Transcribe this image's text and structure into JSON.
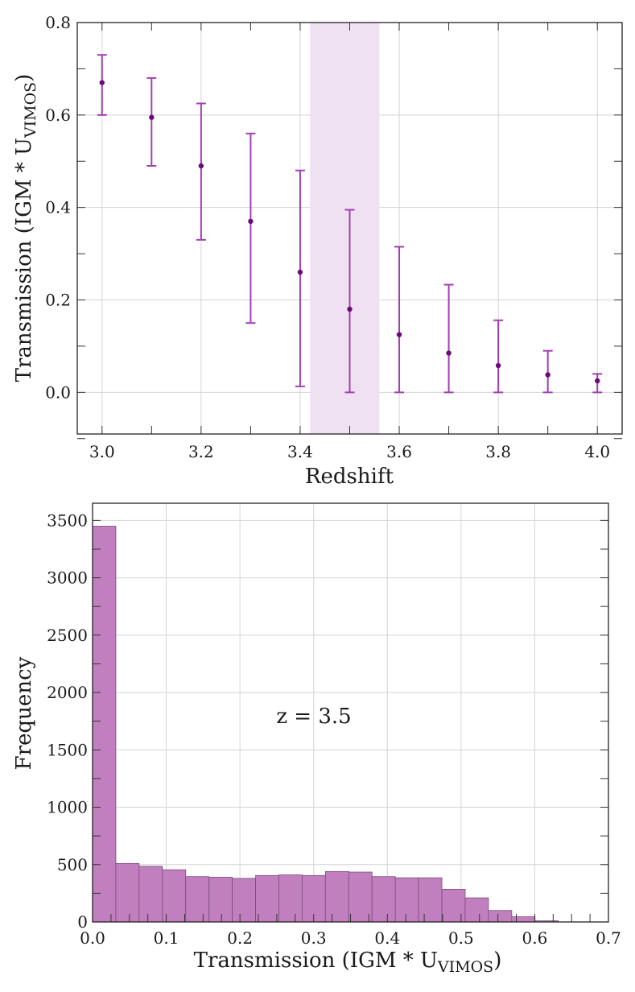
{
  "chart_data": [
    {
      "type": "scatter",
      "title": "",
      "xlabel": "Redshift",
      "ylabel": "Transmission (IGM * U",
      "ylabel_sub": "VIMOS",
      "ylabel_close": ")",
      "xlim": [
        2.95,
        4.05
      ],
      "ylim": [
        -0.09,
        0.8
      ],
      "xticks": [
        "3.0",
        "3.2",
        "3.4",
        "3.6",
        "3.8",
        "4.0"
      ],
      "yticks": [
        "0.0",
        "0.2",
        "0.4",
        "0.6",
        "0.8"
      ],
      "grid": true,
      "shaded_region": [
        3.42,
        3.56
      ],
      "colors": {
        "marker": "#6a0a78",
        "errorbar": "#a040b0",
        "shade": "#efe0f2"
      },
      "points": [
        {
          "x": 3.0,
          "y": 0.67,
          "low": 0.6,
          "high": 0.73
        },
        {
          "x": 3.1,
          "y": 0.595,
          "low": 0.49,
          "high": 0.68
        },
        {
          "x": 3.2,
          "y": 0.49,
          "low": 0.33,
          "high": 0.625
        },
        {
          "x": 3.3,
          "y": 0.37,
          "low": 0.15,
          "high": 0.56
        },
        {
          "x": 3.4,
          "y": 0.26,
          "low": 0.013,
          "high": 0.48
        },
        {
          "x": 3.5,
          "y": 0.18,
          "low": 0.0,
          "high": 0.395
        },
        {
          "x": 3.6,
          "y": 0.125,
          "low": 0.0,
          "high": 0.315
        },
        {
          "x": 3.7,
          "y": 0.085,
          "low": 0.0,
          "high": 0.233
        },
        {
          "x": 3.8,
          "y": 0.058,
          "low": 0.0,
          "high": 0.156
        },
        {
          "x": 3.9,
          "y": 0.038,
          "low": 0.0,
          "high": 0.09
        },
        {
          "x": 4.0,
          "y": 0.025,
          "low": 0.0,
          "high": 0.04
        }
      ]
    },
    {
      "type": "bar",
      "title": "",
      "xlabel": "Transmission (IGM * U",
      "xlabel_sub": "VIMOS",
      "xlabel_close": ")",
      "ylabel": "Frequency",
      "xlim": [
        0.0,
        0.7
      ],
      "ylim": [
        0,
        3650
      ],
      "xticks": [
        "0.0",
        "0.1",
        "0.2",
        "0.3",
        "0.4",
        "0.5",
        "0.6",
        "0.7"
      ],
      "yticks": [
        "0",
        "500",
        "1000",
        "1500",
        "2000",
        "2500",
        "3000",
        "3500"
      ],
      "grid": true,
      "annotation": "z = 3.5",
      "colors": {
        "bar": "#c27fc0",
        "edge": "#7a4a7a"
      },
      "bin_edges": [
        0.0,
        0.0316,
        0.0632,
        0.0948,
        0.1264,
        0.158,
        0.1896,
        0.2212,
        0.2528,
        0.2844,
        0.316,
        0.3476,
        0.3792,
        0.4108,
        0.4424,
        0.474,
        0.5056,
        0.5372,
        0.5688,
        0.6004,
        0.632
      ],
      "values": [
        3450,
        510,
        485,
        455,
        395,
        390,
        380,
        405,
        410,
        405,
        440,
        435,
        395,
        385,
        385,
        285,
        210,
        100,
        45,
        10
      ]
    }
  ]
}
